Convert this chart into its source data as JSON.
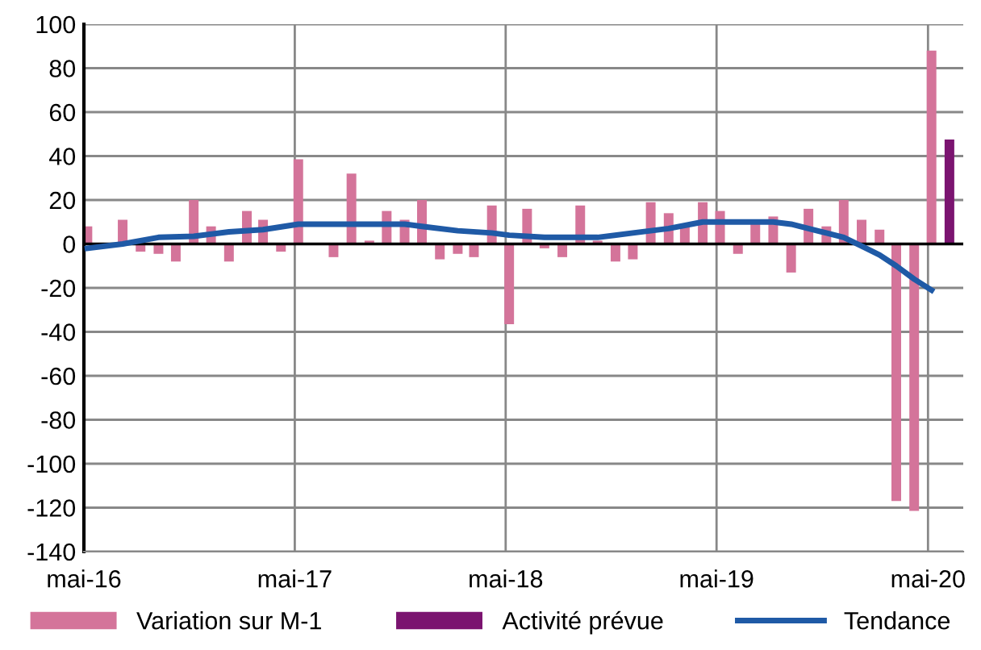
{
  "chart_data": {
    "type": "bar",
    "x": [
      "2016-05",
      "2016-06",
      "2016-07",
      "2016-08",
      "2016-09",
      "2016-10",
      "2016-11",
      "2016-12",
      "2017-01",
      "2017-02",
      "2017-03",
      "2017-04",
      "2017-05",
      "2017-06",
      "2017-07",
      "2017-08",
      "2017-09",
      "2017-10",
      "2017-11",
      "2017-12",
      "2018-01",
      "2018-02",
      "2018-03",
      "2018-04",
      "2018-05",
      "2018-06",
      "2018-07",
      "2018-08",
      "2018-09",
      "2018-10",
      "2018-11",
      "2018-12",
      "2019-01",
      "2019-02",
      "2019-03",
      "2019-04",
      "2019-05",
      "2019-06",
      "2019-07",
      "2019-08",
      "2019-09",
      "2019-10",
      "2019-11",
      "2019-12",
      "2020-01",
      "2020-02",
      "2020-03",
      "2020-04",
      "2020-05"
    ],
    "series": [
      {
        "name": "Variation sur M-1",
        "color": "#d4749a",
        "values": [
          8,
          0,
          11,
          -3.5,
          -4.5,
          -8,
          20,
          8,
          -8,
          15,
          11,
          -3.5,
          38.5,
          0,
          -6,
          32,
          1.5,
          15,
          11,
          20,
          -7,
          -4.5,
          -6,
          17.5,
          -36.5,
          16,
          -2,
          -6,
          17.5,
          1.5,
          -8,
          -7,
          19,
          14,
          9,
          19,
          15,
          -4.5,
          9,
          12.5,
          -13,
          16,
          8,
          20,
          11,
          6.5,
          -117,
          -121.5,
          88
        ]
      },
      {
        "name": "Activité prévue",
        "color": "#7b1470",
        "x": [
          "2020-06"
        ],
        "values": [
          47.5
        ]
      },
      {
        "name": "Tendance",
        "color": "#1f5aa6",
        "type": "line",
        "x": [
          "2016-05",
          "2016-07",
          "2016-09",
          "2016-11",
          "2017-01",
          "2017-03",
          "2017-05",
          "2017-08",
          "2017-11",
          "2017-12",
          "2018-02",
          "2018-04",
          "2018-05",
          "2018-07",
          "2018-10",
          "2018-12",
          "2019-02",
          "2019-04",
          "2019-05",
          "2019-08",
          "2019-09",
          "2019-10",
          "2019-11",
          "2019-12",
          "2020-01",
          "2020-02",
          "2020-03",
          "2020-04",
          "2020-05"
        ],
        "values": [
          -2,
          0,
          3,
          3.5,
          5.5,
          6.5,
          9,
          9,
          9,
          8,
          6,
          5,
          4,
          3,
          3,
          5,
          7,
          10,
          10,
          10,
          9,
          7,
          5,
          3,
          -1,
          -5,
          -10,
          -16,
          -21
        ]
      }
    ],
    "xlim": [
      "2016-05",
      "2020-07"
    ],
    "xticks": [
      {
        "value": "2016-05",
        "label": "mai-16"
      },
      {
        "value": "2017-05",
        "label": "mai-17"
      },
      {
        "value": "2018-05",
        "label": "mai-18"
      },
      {
        "value": "2019-05",
        "label": "mai-19"
      },
      {
        "value": "2020-05",
        "label": "mai-20"
      }
    ],
    "ylim": [
      -140,
      100
    ],
    "yticks": [
      -140,
      -120,
      -100,
      -80,
      -60,
      -40,
      -20,
      0,
      20,
      40,
      60,
      80,
      100
    ],
    "grid": true,
    "legend": "bottom"
  }
}
